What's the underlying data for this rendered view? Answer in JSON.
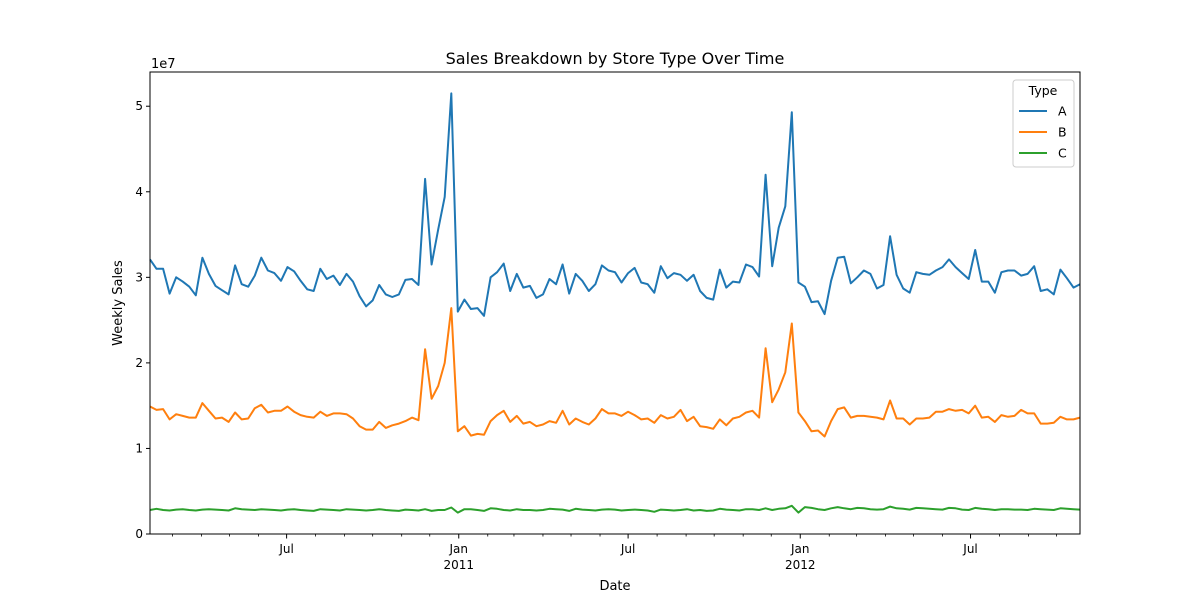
{
  "chart_data": {
    "type": "line",
    "title": "Sales Breakdown by Store Type Over Time",
    "xlabel": "Date",
    "ylabel": "Weekly Sales",
    "y_scale_label": "1e7",
    "ylim": [
      0,
      54000000
    ],
    "xlim": [
      "2010-02-05",
      "2012-10-26"
    ],
    "grid": false,
    "legend": {
      "title": "Type",
      "placement": "top-right"
    },
    "yticks": [
      {
        "value": 0,
        "label": "0"
      },
      {
        "value": 10000000,
        "label": "1"
      },
      {
        "value": 20000000,
        "label": "2"
      },
      {
        "value": 30000000,
        "label": "3"
      },
      {
        "value": 40000000,
        "label": "4"
      },
      {
        "value": 50000000,
        "label": "5"
      }
    ],
    "xticks_major": [
      {
        "date": "2010-07-01",
        "label": "Jul",
        "sub": ""
      },
      {
        "date": "2011-01-01",
        "label": "Jan",
        "sub": "2011"
      },
      {
        "date": "2011-07-01",
        "label": "Jul",
        "sub": ""
      },
      {
        "date": "2012-01-01",
        "label": "Jan",
        "sub": "2012"
      },
      {
        "date": "2012-07-01",
        "label": "Jul",
        "sub": ""
      }
    ],
    "xticks_minor": [
      "2010-03-01",
      "2010-04-01",
      "2010-05-01",
      "2010-06-01",
      "2010-08-01",
      "2010-09-01",
      "2010-10-01",
      "2010-11-01",
      "2010-12-01",
      "2011-02-01",
      "2011-03-01",
      "2011-04-01",
      "2011-05-01",
      "2011-06-01",
      "2011-08-01",
      "2011-09-01",
      "2011-10-01",
      "2011-11-01",
      "2011-12-01",
      "2012-02-01",
      "2012-03-01",
      "2012-04-01",
      "2012-05-01",
      "2012-06-01",
      "2012-08-01",
      "2012-09-01",
      "2012-10-01"
    ],
    "x_start": "2010-02-05",
    "x_step_days": 7,
    "series": [
      {
        "name": "A",
        "color": "#1f77b4",
        "values": [
          32100000,
          31000000,
          31000000,
          28100000,
          30000000,
          29500000,
          28900000,
          27900000,
          32300000,
          30400000,
          29000000,
          28500000,
          28000000,
          31400000,
          29200000,
          28900000,
          30200000,
          32300000,
          30800000,
          30500000,
          29600000,
          31200000,
          30700000,
          29600000,
          28600000,
          28400000,
          31000000,
          29800000,
          30200000,
          29100000,
          30400000,
          29500000,
          27800000,
          26600000,
          27300000,
          29100000,
          28000000,
          27700000,
          28000000,
          29700000,
          29800000,
          29100000,
          41500000,
          31500000,
          35600000,
          39400000,
          51500000,
          26000000,
          27400000,
          26300000,
          26400000,
          25500000,
          30000000,
          30600000,
          31600000,
          28400000,
          30400000,
          28800000,
          29000000,
          27600000,
          28000000,
          29800000,
          29200000,
          31500000,
          28100000,
          30400000,
          29600000,
          28400000,
          29200000,
          31400000,
          30800000,
          30600000,
          29400000,
          30500000,
          31100000,
          29400000,
          29200000,
          28200000,
          31300000,
          29900000,
          30500000,
          30300000,
          29600000,
          30300000,
          28400000,
          27600000,
          27400000,
          30900000,
          28800000,
          29500000,
          29400000,
          31500000,
          31200000,
          30100000,
          42000000,
          31300000,
          35800000,
          38300000,
          49300000,
          29400000,
          28900000,
          27100000,
          27200000,
          25700000,
          29600000,
          32300000,
          32400000,
          29300000,
          30000000,
          30800000,
          30400000,
          28700000,
          29100000,
          34800000,
          30300000,
          28700000,
          28200000,
          30600000,
          30400000,
          30300000,
          30800000,
          31200000,
          32100000,
          31200000,
          30500000,
          29800000,
          33200000,
          29500000,
          29500000,
          28200000,
          30600000,
          30800000,
          30800000,
          30200000,
          30400000,
          31300000,
          28400000,
          28600000,
          28000000,
          30900000,
          29900000,
          28800000,
          29200000
        ]
      },
      {
        "name": "B",
        "color": "#ff7f0e",
        "values": [
          14900000,
          14500000,
          14600000,
          13400000,
          14000000,
          13800000,
          13600000,
          13600000,
          15300000,
          14400000,
          13500000,
          13600000,
          13100000,
          14200000,
          13400000,
          13500000,
          14700000,
          15100000,
          14200000,
          14400000,
          14400000,
          14900000,
          14300000,
          13900000,
          13700000,
          13600000,
          14300000,
          13800000,
          14100000,
          14100000,
          14000000,
          13500000,
          12600000,
          12200000,
          12200000,
          13100000,
          12400000,
          12700000,
          12900000,
          13200000,
          13600000,
          13300000,
          21600000,
          15800000,
          17300000,
          20000000,
          26400000,
          12000000,
          12600000,
          11500000,
          11700000,
          11600000,
          13200000,
          13900000,
          14400000,
          13100000,
          13800000,
          12900000,
          13100000,
          12600000,
          12800000,
          13200000,
          13000000,
          14400000,
          12800000,
          13500000,
          13100000,
          12800000,
          13500000,
          14600000,
          14100000,
          14100000,
          13800000,
          14300000,
          13900000,
          13400000,
          13500000,
          13000000,
          13900000,
          13500000,
          13700000,
          14500000,
          13200000,
          13700000,
          12600000,
          12500000,
          12300000,
          13400000,
          12700000,
          13500000,
          13700000,
          14200000,
          14400000,
          13600000,
          21700000,
          15400000,
          16900000,
          18900000,
          24600000,
          14200000,
          13200000,
          12000000,
          12100000,
          11400000,
          13200000,
          14600000,
          14800000,
          13600000,
          13800000,
          13800000,
          13700000,
          13600000,
          13400000,
          15600000,
          13500000,
          13500000,
          12800000,
          13500000,
          13500000,
          13600000,
          14300000,
          14300000,
          14600000,
          14400000,
          14500000,
          14100000,
          15000000,
          13600000,
          13700000,
          13100000,
          13900000,
          13700000,
          13800000,
          14500000,
          14100000,
          14100000,
          12900000,
          12900000,
          13000000,
          13700000,
          13400000,
          13400000,
          13600000
        ]
      },
      {
        "name": "C",
        "color": "#2ca02c",
        "values": [
          2800000,
          2950000,
          2800000,
          2750000,
          2850000,
          2900000,
          2800000,
          2750000,
          2850000,
          2900000,
          2850000,
          2800000,
          2750000,
          3000000,
          2900000,
          2850000,
          2800000,
          2900000,
          2850000,
          2800000,
          2750000,
          2850000,
          2900000,
          2800000,
          2750000,
          2700000,
          2900000,
          2850000,
          2800000,
          2750000,
          2900000,
          2850000,
          2800000,
          2750000,
          2800000,
          2900000,
          2800000,
          2750000,
          2700000,
          2850000,
          2800000,
          2750000,
          2900000,
          2700000,
          2800000,
          2800000,
          3100000,
          2500000,
          2900000,
          2900000,
          2800000,
          2700000,
          3000000,
          2950000,
          2800000,
          2750000,
          2900000,
          2800000,
          2800000,
          2750000,
          2800000,
          2950000,
          2900000,
          2850000,
          2700000,
          2950000,
          2850000,
          2800000,
          2750000,
          2850000,
          2900000,
          2850000,
          2750000,
          2800000,
          2850000,
          2800000,
          2750000,
          2600000,
          2850000,
          2800000,
          2750000,
          2800000,
          2900000,
          2750000,
          2800000,
          2700000,
          2750000,
          2950000,
          2850000,
          2800000,
          2750000,
          2900000,
          2900000,
          2800000,
          3000000,
          2800000,
          2950000,
          3000000,
          3300000,
          2500000,
          3150000,
          3050000,
          2900000,
          2800000,
          3000000,
          3150000,
          3000000,
          2900000,
          3050000,
          3000000,
          2900000,
          2850000,
          2900000,
          3200000,
          3000000,
          2950000,
          2850000,
          3050000,
          3000000,
          2950000,
          2900000,
          2850000,
          3050000,
          3000000,
          2850000,
          2800000,
          3050000,
          2950000,
          2900000,
          2800000,
          2900000,
          2900000,
          2850000,
          2850000,
          2800000,
          2950000,
          2900000,
          2850000,
          2800000,
          3000000,
          2950000,
          2900000,
          2850000
        ]
      }
    ]
  }
}
